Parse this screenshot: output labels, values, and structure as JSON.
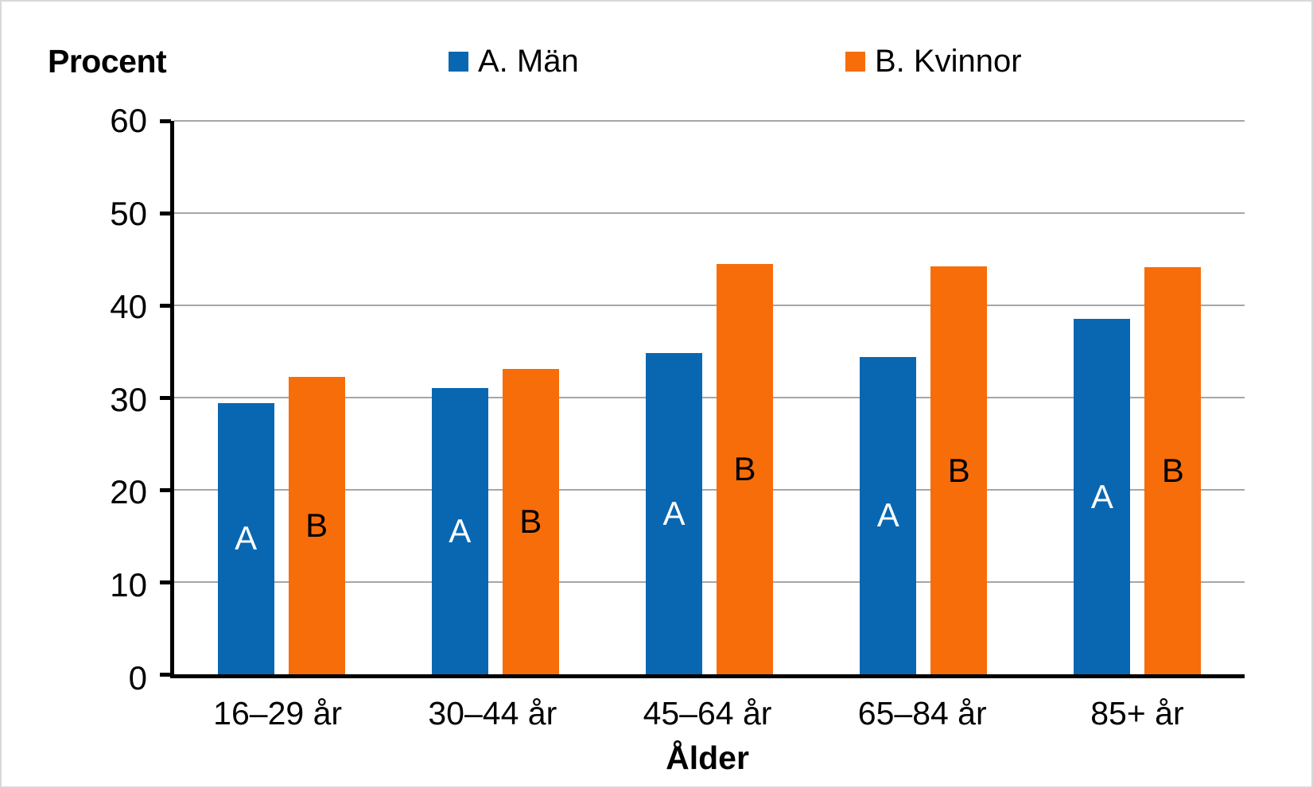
{
  "chart": {
    "y_axis_title": "Procent",
    "x_axis_title": "Ålder"
  },
  "legend": [
    {
      "label": "A. Män",
      "color": "#0967B1"
    },
    {
      "label": "B. Kvinnor",
      "color": "#F76D0A"
    }
  ],
  "chart_data": {
    "type": "bar",
    "categories": [
      "16–29 år",
      "30–44 år",
      "45–64 år",
      "65–84 år",
      "85+ år"
    ],
    "series": [
      {
        "name": "A. Män",
        "letter": "A",
        "color": "#0967B1",
        "letter_color": "#FFFFFF",
        "values": [
          29.4,
          31.0,
          34.8,
          34.4,
          38.5
        ]
      },
      {
        "name": "B. Kvinnor",
        "letter": "B",
        "color": "#F76D0A",
        "letter_color": "#000000",
        "values": [
          32.2,
          33.1,
          44.5,
          44.2,
          44.1
        ]
      }
    ],
    "title": "",
    "xlabel": "Ålder",
    "ylabel": "Procent",
    "ylim": [
      0,
      60
    ],
    "yticks": [
      0,
      10,
      20,
      30,
      40,
      50,
      60
    ],
    "grid": true,
    "legend_position": "top"
  },
  "colors": {
    "grid": "#A6A6A6",
    "axis": "#000000",
    "background": "#FFFFFF",
    "frame_border": "#D9D9D9"
  }
}
